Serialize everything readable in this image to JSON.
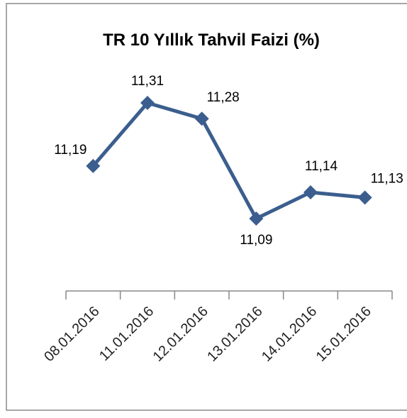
{
  "chart_data": {
    "type": "line",
    "title": "TR 10 Yıllık Tahvil Faizi (%)",
    "categories": [
      "08.01.2016",
      "11.01.2016",
      "12.01.2016",
      "13.01.2016",
      "14.01.2016",
      "15.01.2016"
    ],
    "values": [
      11.19,
      11.31,
      11.28,
      11.09,
      11.14,
      11.13
    ],
    "value_labels": [
      "11,19",
      "11,31",
      "11,28",
      "11,09",
      "11,14",
      "11,13"
    ],
    "color": "#3b5e8e"
  }
}
